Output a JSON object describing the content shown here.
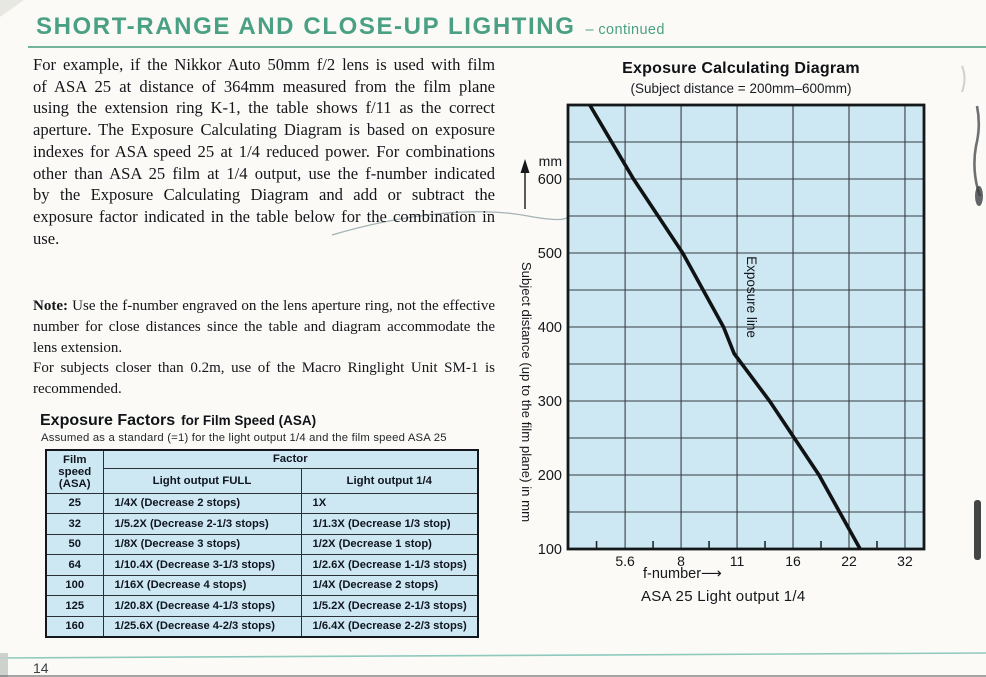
{
  "page": {
    "title": "SHORT-RANGE AND CLOSE-UP LIGHTING",
    "title_suffix": "– continued",
    "page_number": "14",
    "accent_color": "#4aa085"
  },
  "article": {
    "paragraph1": "For example, if the Nikkor Auto 50mm f/2 lens is used with film of ASA 25 at distance of 364mm measured from the film plane using the extension ring K-1, the table shows f/11 as the correct aperture. The Exposure Calculating Diagram is based on exposure indexes for ASA speed 25 at 1/4 reduced power. For combinations other than ASA 25 film at 1/4 output, use the f-number indicated by the Exposure Calculating Diagram and add or subtract the exposure factor indicated in the table below for the combination in use.",
    "note_label": "Note:",
    "note_text": " Use the f-number engraved on the lens aperture ring, not the effective number for close distances since the table and diagram accommodate the lens extension.",
    "note_text2": "For subjects closer than 0.2m, use of the Macro Ringlight Unit SM-1 is recommended."
  },
  "factors_table": {
    "heading_main": "Exposure Factors",
    "heading_rest": "for Film Speed (ASA)",
    "subheading": "Assumed as a standard (=1) for the light output 1/4 and the film speed ASA 25",
    "col1_header": "Film speed (ASA)",
    "factor_header": "Factor",
    "col2_header": "Light output FULL",
    "col3_header": "Light output 1/4",
    "rows": [
      [
        "25",
        "1/4X (Decrease 2 stops)",
        "1X"
      ],
      [
        "32",
        "1/5.2X (Decrease 2-1/3 stops)",
        "1/1.3X (Decrease 1/3 stop)"
      ],
      [
        "50",
        "1/8X (Decrease 3 stops)",
        "1/2X (Decrease 1 stop)"
      ],
      [
        "64",
        "1/10.4X (Decrease 3-1/3 stops)",
        "1/2.6X (Decrease 1-1/3 stops)"
      ],
      [
        "100",
        "1/16X (Decrease 4 stops)",
        "1/4X (Decrease 2 stops)"
      ],
      [
        "125",
        "1/20.8X (Decrease 4-1/3 stops)",
        "1/5.2X (Decrease 2-1/3 stops)"
      ],
      [
        "160",
        "1/25.6X (Decrease 4-2/3 stops)",
        "1/6.4X (Decrease 2-2/3 stops)"
      ]
    ]
  },
  "chart_data": {
    "type": "line",
    "title": "Exposure Calculating Diagram",
    "subtitle": "(Subject distance = 200mm–600mm)",
    "plot_bg": "#cde8f2",
    "grid": "on",
    "x_axis": {
      "label": "f-number",
      "arrow_glyph": "⟶",
      "ticks": [
        "5.6",
        "8",
        "11",
        "16",
        "22",
        "32"
      ],
      "scale": "f-stop (log)",
      "range_stops": [
        -1.02,
        5.34
      ],
      "minor_ticks": "half-stops"
    },
    "y_axis": {
      "unit": "mm",
      "label": "Subject distance (up to the film plane) in mm",
      "ticks": [
        600,
        500,
        400,
        300,
        200,
        100
      ],
      "range": [
        100,
        700
      ],
      "gridline_step_mm": 50
    },
    "series": [
      {
        "name": "Exposure line",
        "style": "straight descending line",
        "points": [
          {
            "distance_mm": 700,
            "f_number": 4.5
          },
          {
            "distance_mm": 600,
            "f_number": 5.9
          },
          {
            "distance_mm": 500,
            "f_number": 8
          },
          {
            "distance_mm": 400,
            "f_number": 10.3
          },
          {
            "distance_mm": 364,
            "f_number": 11
          },
          {
            "distance_mm": 300,
            "f_number": 13.7
          },
          {
            "distance_mm": 200,
            "f_number": 18.6
          },
          {
            "distance_mm": 100,
            "f_number": 24
          }
        ]
      }
    ],
    "caption": "ASA 25 Light output 1/4"
  }
}
